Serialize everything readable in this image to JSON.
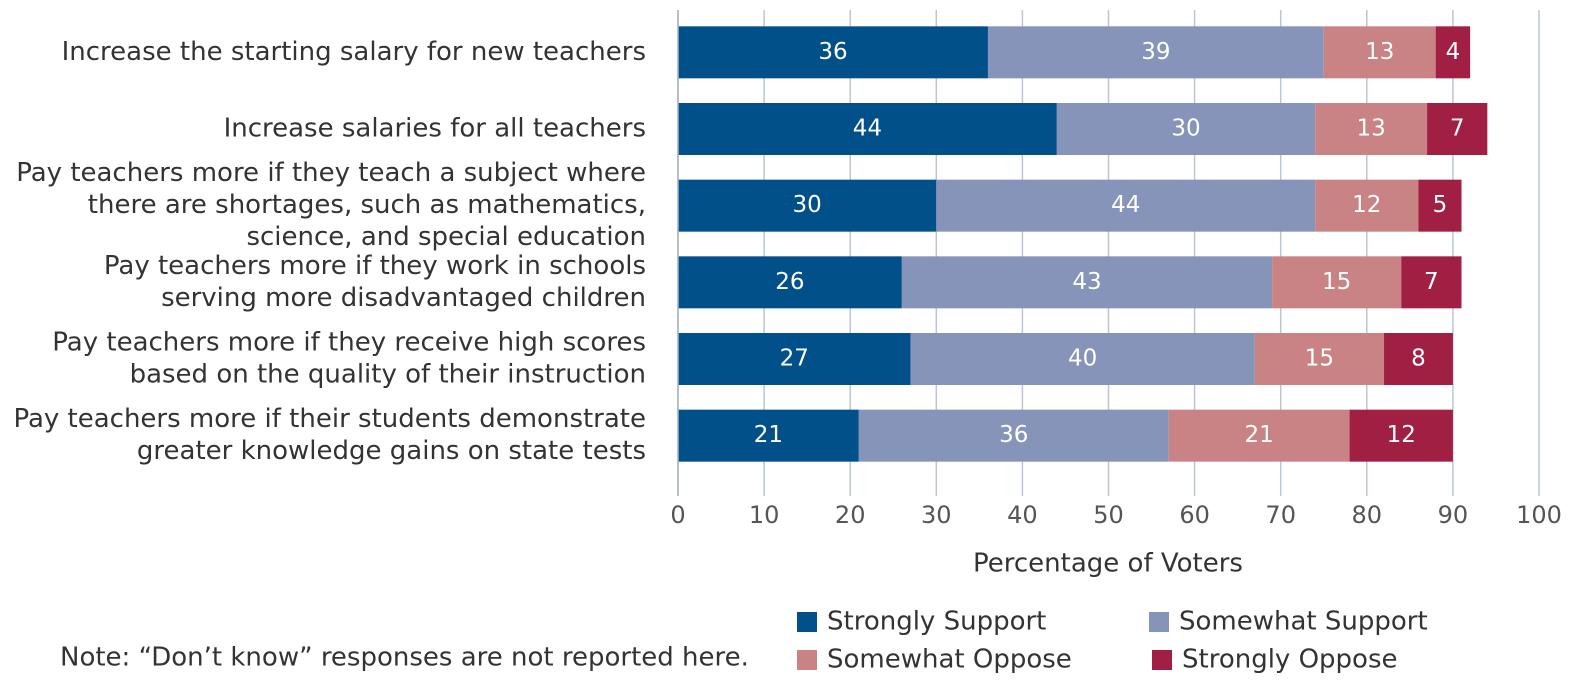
{
  "chart_data": {
    "type": "stacked-bar-horizontal",
    "categories": [
      [
        "Increase the starting salary for new teachers"
      ],
      [
        "Increase salaries for all teachers"
      ],
      [
        "Pay teachers more if they teach a subject where",
        "there are shortages, such as mathematics,",
        "science, and special education"
      ],
      [
        "Pay teachers more if they work in schools",
        "serving more disadvantaged children"
      ],
      [
        "Pay teachers more if they receive high scores",
        "based on the quality of their instruction"
      ],
      [
        "Pay teachers more if their students demonstrate",
        "greater knowledge gains on state tests"
      ]
    ],
    "series": [
      {
        "name": "Strongly Support",
        "color": "#02508a",
        "values": [
          36,
          44,
          30,
          26,
          27,
          21
        ]
      },
      {
        "name": "Somewhat Support",
        "color": "#8594b8",
        "values": [
          39,
          30,
          44,
          43,
          40,
          36
        ]
      },
      {
        "name": "Somewhat Oppose",
        "color": "#c98384",
        "values": [
          13,
          13,
          12,
          15,
          15,
          21
        ]
      },
      {
        "name": "Strongly Oppose",
        "color": "#a21f44",
        "values": [
          4,
          7,
          5,
          7,
          8,
          12
        ]
      }
    ],
    "xlabel": "Percentage of Voters",
    "xlim": [
      0,
      100
    ],
    "xticks": [
      0,
      10,
      20,
      30,
      40,
      50,
      60,
      70,
      80,
      90,
      100
    ],
    "grid": true,
    "legend": "bottom",
    "note": "Note: “Don’t know” responses are not reported here."
  }
}
